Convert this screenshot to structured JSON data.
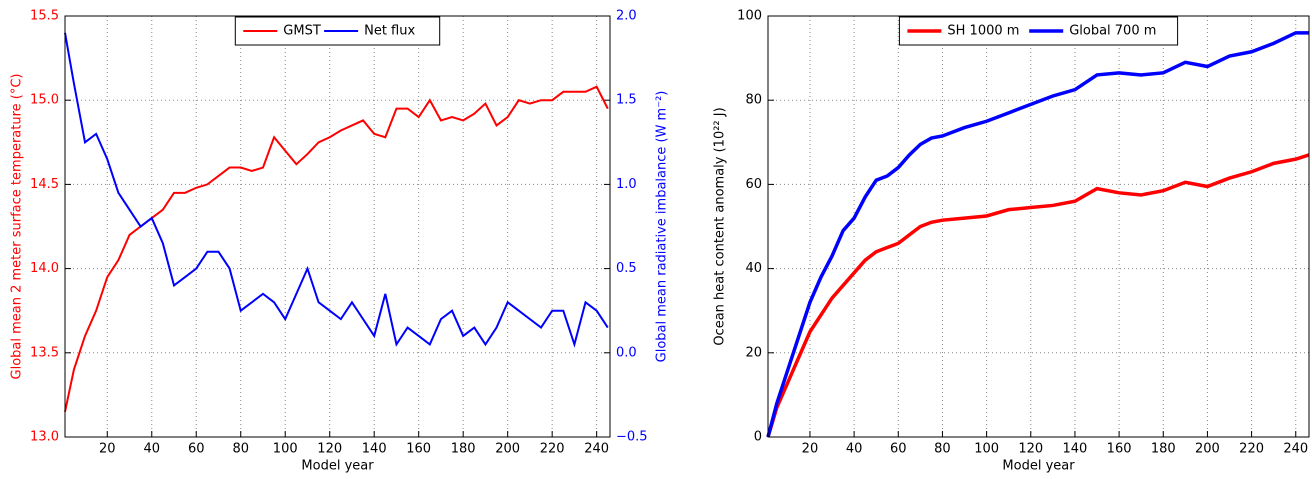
{
  "chart_data": [
    {
      "type": "line",
      "xlabel": "Model year",
      "ylabel": "Global mean 2 meter surface temperature (°C)",
      "y2label": "Global mean radiative imbalance (W m⁻²)",
      "x": [
        1,
        5,
        10,
        15,
        20,
        25,
        30,
        35,
        40,
        45,
        50,
        55,
        60,
        65,
        70,
        75,
        80,
        85,
        90,
        95,
        100,
        105,
        110,
        115,
        120,
        125,
        130,
        135,
        140,
        145,
        150,
        155,
        160,
        165,
        170,
        175,
        180,
        185,
        190,
        195,
        200,
        205,
        210,
        215,
        220,
        225,
        230,
        235,
        240,
        245
      ],
      "xlim": [
        1,
        246
      ],
      "xticks": [
        20,
        40,
        60,
        80,
        100,
        120,
        140,
        160,
        180,
        200,
        220,
        240
      ],
      "ylim": [
        13,
        15.5
      ],
      "yticks": [
        {
          "value": 13,
          "label": "13.0"
        },
        13.5,
        {
          "value": 14,
          "label": "14.0"
        },
        14.5,
        {
          "value": 15,
          "label": "15.0"
        },
        15.5
      ],
      "y2lim": [
        -0.5,
        2
      ],
      "y2ticks": [
        {
          "value": -0.5,
          "label": "−0.5"
        },
        {
          "value": 0,
          "label": "0.0"
        },
        0.5,
        {
          "value": 1,
          "label": "1.0"
        },
        1.5,
        {
          "value": 2,
          "label": "2.0"
        }
      ],
      "grid": true,
      "legend": "upper center",
      "series": [
        {
          "name": "GMST",
          "color": "#ff0000",
          "values": [
            13.15,
            13.4,
            13.6,
            13.75,
            13.95,
            14.05,
            14.2,
            14.25,
            14.3,
            14.35,
            14.45,
            14.45,
            14.48,
            14.5,
            14.55,
            14.6,
            14.6,
            14.58,
            14.6,
            14.78,
            14.7,
            14.62,
            14.68,
            14.75,
            14.78,
            14.82,
            14.85,
            14.88,
            14.8,
            14.78,
            14.95,
            14.95,
            14.9,
            15.0,
            14.88,
            14.9,
            14.88,
            14.92,
            14.98,
            14.85,
            14.9,
            15.0,
            14.98,
            15.0,
            15.0,
            15.05,
            15.05,
            15.05,
            15.08,
            14.95
          ]
        },
        {
          "name": "Net flux",
          "color": "#0000ff",
          "axis": "y2",
          "values": [
            1.9,
            1.6,
            1.25,
            1.3,
            1.15,
            0.95,
            0.85,
            0.75,
            0.8,
            0.65,
            0.4,
            0.45,
            0.5,
            0.6,
            0.6,
            0.5,
            0.25,
            0.3,
            0.35,
            0.3,
            0.2,
            0.35,
            0.5,
            0.3,
            0.25,
            0.2,
            0.3,
            0.2,
            0.1,
            0.35,
            0.05,
            0.15,
            0.1,
            0.05,
            0.2,
            0.25,
            0.1,
            0.15,
            0.05,
            0.15,
            0.3,
            0.25,
            0.2,
            0.15,
            0.25,
            0.25,
            0.05,
            0.3,
            0.25,
            0.15
          ]
        }
      ]
    },
    {
      "type": "line",
      "xlabel": "Model year",
      "ylabel": "Ocean heat content anomaly (10²² J)",
      "x": [
        1,
        5,
        10,
        15,
        20,
        25,
        30,
        35,
        40,
        45,
        50,
        55,
        60,
        65,
        70,
        75,
        80,
        90,
        100,
        110,
        120,
        130,
        140,
        150,
        160,
        170,
        180,
        190,
        200,
        210,
        220,
        230,
        240,
        246
      ],
      "xlim": [
        1,
        246
      ],
      "xticks": [
        20,
        40,
        60,
        80,
        100,
        120,
        140,
        160,
        180,
        200,
        220,
        240
      ],
      "ylim": [
        0,
        100
      ],
      "yticks": [
        0,
        20,
        40,
        60,
        80,
        100
      ],
      "grid": true,
      "legend": "upper center",
      "series": [
        {
          "name": "SH 1000 m",
          "color": "#ff0000",
          "values": [
            0,
            7,
            13,
            19,
            25,
            29,
            33,
            36,
            39,
            42,
            44,
            45,
            46,
            48,
            50,
            51,
            51.5,
            52,
            52.5,
            54,
            54.5,
            55,
            56,
            59,
            58,
            57.5,
            58.5,
            60.5,
            59.5,
            61.5,
            63,
            65,
            66,
            67
          ]
        },
        {
          "name": "Global 700 m",
          "color": "#0000ff",
          "values": [
            0,
            8,
            16,
            24,
            32,
            38,
            43,
            49,
            52,
            57,
            61,
            62,
            64,
            67,
            69.5,
            71,
            71.5,
            73.5,
            75,
            77,
            79,
            81,
            82.5,
            86,
            86.5,
            86,
            86.5,
            89,
            88,
            90.5,
            91.5,
            93.5,
            96,
            96
          ]
        }
      ]
    }
  ]
}
